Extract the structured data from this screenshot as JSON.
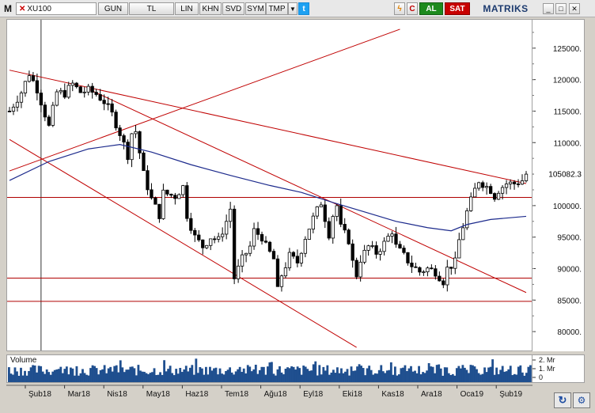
{
  "toolbar": {
    "logo": "M",
    "symbol": "XU100",
    "items": [
      {
        "label": "GUN",
        "width": 38
      },
      {
        "label": "TL",
        "width": 58
      },
      {
        "label": "LIN",
        "width": 30
      },
      {
        "label": "KHN",
        "width": 28
      },
      {
        "label": "SVD",
        "width": 28
      },
      {
        "label": "SYM",
        "width": 28
      },
      {
        "label": "TMP",
        "width": 28
      }
    ],
    "buy_label": "AL",
    "sell_label": "SAT",
    "brand": "MATRIKS",
    "window_buttons": [
      "_",
      "□",
      "✕"
    ]
  },
  "chart_data": {
    "type": "candlestick",
    "symbol": "XU100",
    "y_ticks": [
      125000,
      120000,
      115000,
      110000,
      105000,
      100000,
      95000,
      90000,
      85000,
      80000
    ],
    "ylim": [
      77000,
      129500
    ],
    "last_value_label": "105082.3",
    "last_value": 105082.3,
    "x_ticks": [
      "Şub18",
      "Mar18",
      "Nis18",
      "May18",
      "Haz18",
      "Tem18",
      "Ağu18",
      "Eyl18",
      "Eki18",
      "Kas18",
      "Ara18",
      "Oca19",
      "Şub19"
    ],
    "close_path": [
      [
        0,
        115000
      ],
      [
        3,
        118000
      ],
      [
        5,
        121000
      ],
      [
        7,
        118500
      ],
      [
        9,
        114500
      ],
      [
        10,
        112500
      ],
      [
        12,
        118000
      ],
      [
        14,
        117800
      ],
      [
        16,
        119300
      ],
      [
        18,
        118000
      ],
      [
        20,
        118300
      ],
      [
        22,
        117700
      ],
      [
        24,
        116500
      ],
      [
        26,
        114500
      ],
      [
        28,
        111500
      ],
      [
        30,
        108000
      ],
      [
        31,
        111500
      ],
      [
        32,
        111800
      ],
      [
        34,
        105000
      ],
      [
        36,
        101000
      ],
      [
        38,
        98500
      ],
      [
        39,
        102000
      ],
      [
        42,
        101500
      ],
      [
        44,
        103000
      ],
      [
        45,
        98500
      ],
      [
        47,
        95000
      ],
      [
        49,
        93500
      ],
      [
        51,
        95000
      ],
      [
        53,
        94500
      ],
      [
        55,
        97500
      ],
      [
        56,
        99500
      ],
      [
        57,
        88500
      ],
      [
        59,
        91500
      ],
      [
        61,
        93500
      ],
      [
        62,
        96000
      ],
      [
        64,
        95000
      ],
      [
        65,
        93500
      ],
      [
        67,
        91500
      ],
      [
        68,
        86500
      ],
      [
        69,
        89000
      ],
      [
        71,
        92000
      ],
      [
        73,
        91000
      ],
      [
        75,
        95000
      ],
      [
        77,
        98000
      ],
      [
        79,
        100500
      ],
      [
        81,
        95500
      ],
      [
        82,
        98500
      ],
      [
        83,
        100000
      ],
      [
        84,
        96500
      ],
      [
        86,
        94500
      ],
      [
        87,
        91000
      ],
      [
        88,
        89000
      ],
      [
        89,
        91500
      ],
      [
        91,
        93500
      ],
      [
        93,
        92500
      ],
      [
        95,
        94000
      ],
      [
        97,
        96000
      ],
      [
        98,
        93500
      ],
      [
        100,
        92000
      ],
      [
        102,
        90500
      ],
      [
        104,
        89500
      ],
      [
        106,
        90000
      ],
      [
        108,
        89500
      ],
      [
        110,
        88000
      ],
      [
        111,
        90000
      ],
      [
        113,
        91000
      ],
      [
        114,
        94500
      ],
      [
        116,
        99000
      ],
      [
        118,
        102500
      ],
      [
        119,
        104000
      ],
      [
        121,
        103000
      ],
      [
        122,
        102500
      ],
      [
        123,
        101500
      ],
      [
        124,
        102500
      ],
      [
        126,
        103500
      ],
      [
        128,
        103500
      ],
      [
        130,
        104000
      ],
      [
        131,
        105000
      ]
    ],
    "ma_path": [
      [
        0,
        104000
      ],
      [
        10,
        107000
      ],
      [
        20,
        109000
      ],
      [
        28,
        109700
      ],
      [
        36,
        108500
      ],
      [
        46,
        106500
      ],
      [
        56,
        104800
      ],
      [
        66,
        103200
      ],
      [
        74,
        102100
      ],
      [
        82,
        100500
      ],
      [
        90,
        99000
      ],
      [
        98,
        97500
      ],
      [
        106,
        96500
      ],
      [
        112,
        96000
      ],
      [
        116,
        97000
      ],
      [
        122,
        97800
      ],
      [
        131,
        98300
      ]
    ],
    "horizontal_lines": [
      101300,
      88500,
      84800
    ],
    "trend_lines": [
      [
        [
          0,
          121500
        ],
        [
          131,
          103500
        ]
      ],
      [
        [
          0,
          105500
        ],
        [
          99,
          128000
        ]
      ],
      [
        [
          20,
          118500
        ],
        [
          131,
          86200
        ]
      ],
      [
        [
          0,
          110500
        ],
        [
          88,
          77500
        ]
      ]
    ],
    "vertical_marker_x": 8,
    "volume_label": "Volume",
    "volume_ticks": [
      "2. Mr",
      "1. Mr",
      "0"
    ]
  }
}
